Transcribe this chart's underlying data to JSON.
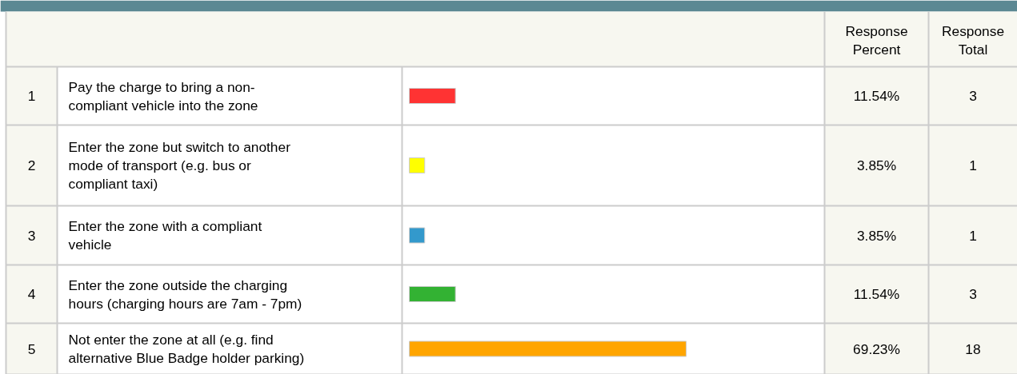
{
  "chart_data": {
    "type": "bar",
    "orientation": "horizontal",
    "categories": [
      "Pay the charge to bring a non-compliant vehicle into the zone",
      "Enter the zone but switch to another mode of transport (e.g. bus or compliant taxi)",
      "Enter the zone with a compliant vehicle",
      "Enter the zone outside the charging hours (charging hours are 7am - 7pm)",
      "Not enter the zone at all (e.g. find alternative Blue Badge holder parking)"
    ],
    "values": [
      11.54,
      3.85,
      3.85,
      11.54,
      69.23
    ],
    "colors": [
      "#ff3333",
      "#ffff00",
      "#3399cc",
      "#33b233",
      "#ffa500"
    ],
    "value_labels": [
      "11.54%",
      "3.85%",
      "3.85%",
      "11.54%",
      "69.23%"
    ],
    "annotations": [
      "Response Percent",
      "Response Total",
      "1",
      "2",
      "3",
      "4",
      "5",
      "3",
      "1",
      "1",
      "3",
      "18"
    ],
    "legend": false,
    "grid": false
  }
}
